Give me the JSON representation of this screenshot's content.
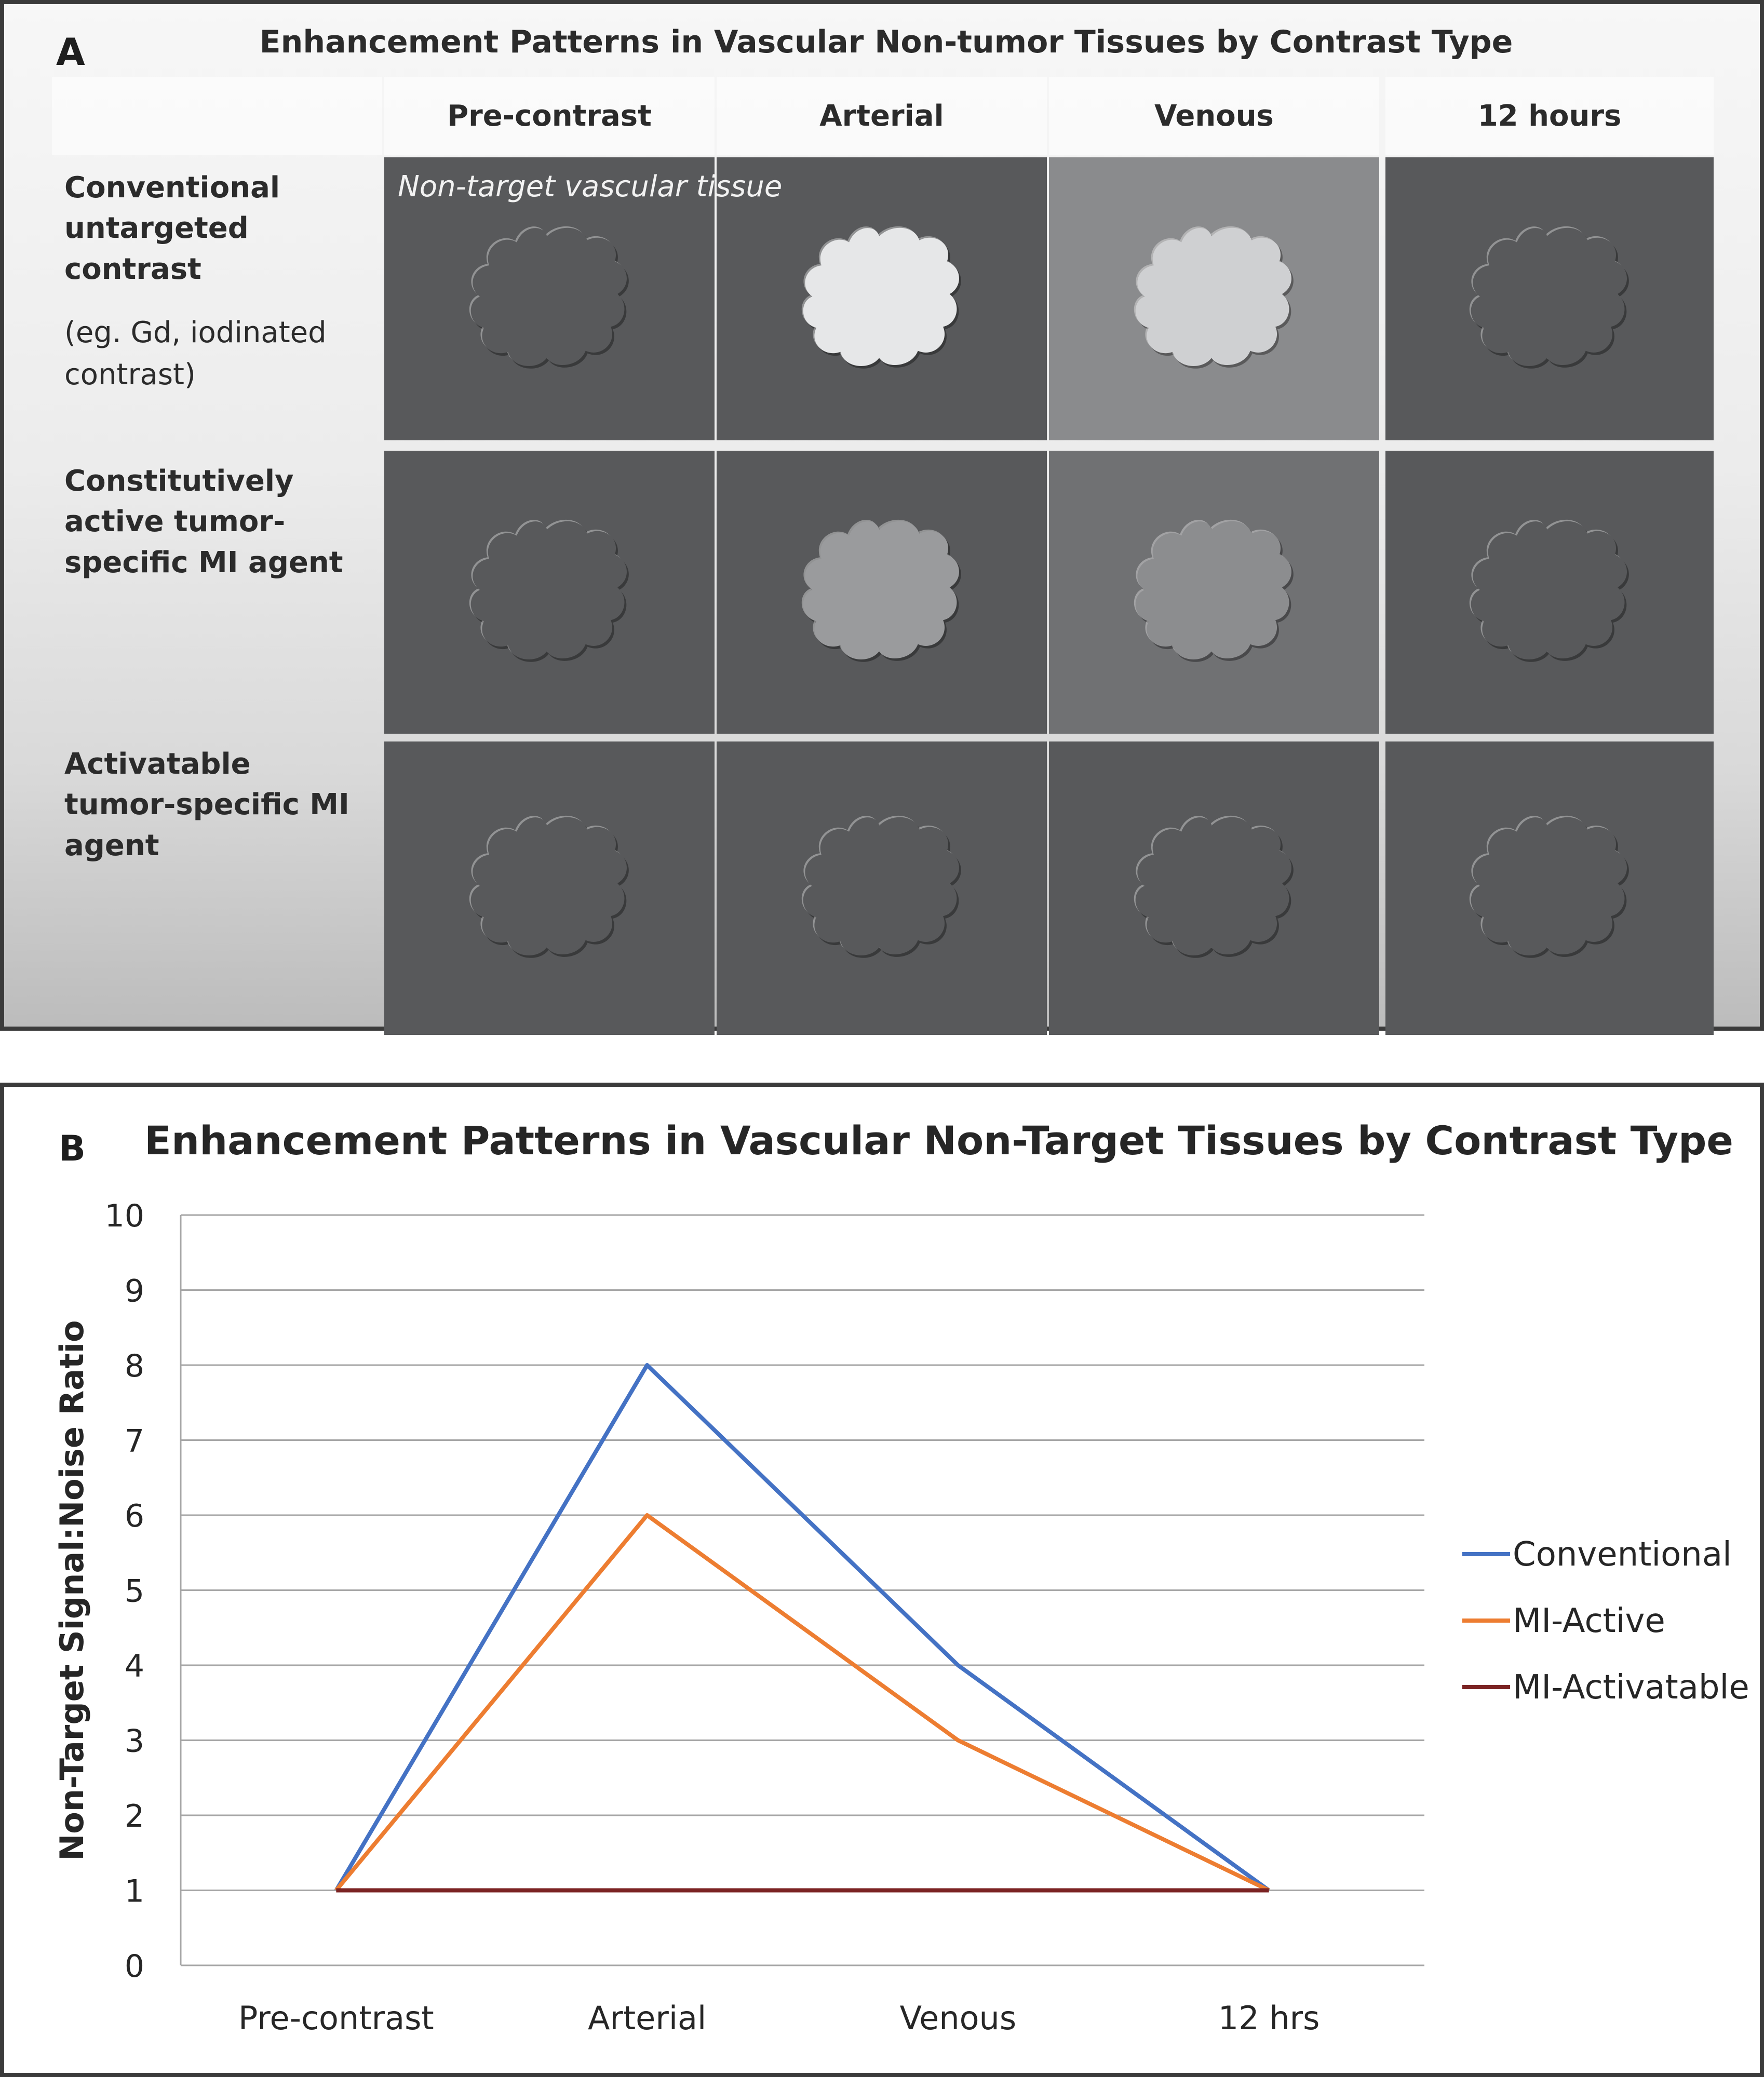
{
  "panel_a": {
    "letter": "A",
    "title": "Enhancement Patterns in Vascular Non-tumor Tissues by Contrast Type",
    "columns": [
      "Pre-contrast",
      "Arterial",
      "Venous",
      "12 hours"
    ],
    "rows": [
      {
        "label": "Conventional untargeted contrast",
        "sublabel": "(eg. Gd, iodinated contrast)",
        "cell_note": "Non-target vascular tissue",
        "background_colors": [
          "#58595b",
          "#58595b",
          "#8a8b8d",
          "#58595b"
        ],
        "blob_colors": [
          "#58595b",
          "#e6e7e8",
          "#cfd0d2",
          "#58595b"
        ]
      },
      {
        "label": "Constitutively active tumor-specific MI agent",
        "sublabel": "",
        "background_colors": [
          "#58595b",
          "#58595b",
          "#707173",
          "#58595b"
        ],
        "blob_colors": [
          "#58595b",
          "#9a9b9d",
          "#8c8d8f",
          "#58595b"
        ]
      },
      {
        "label": "Activatable tumor-specific MI agent",
        "sublabel": "",
        "background_colors": [
          "#58595b",
          "#58595b",
          "#58595b",
          "#58595b"
        ],
        "blob_colors": [
          "#58595b",
          "#58595b",
          "#58595b",
          "#58595b"
        ]
      }
    ]
  },
  "panel_b": {
    "letter": "B"
  },
  "chart_data": {
    "type": "line",
    "title": "Enhancement Patterns in Vascular Non-Target Tissues by Contrast Type",
    "xlabel": "",
    "ylabel": "Non-Target Signal:Noise Ratio",
    "categories": [
      "Pre-contrast",
      "Arterial",
      "Venous",
      "12 hrs"
    ],
    "ylim": [
      0,
      10
    ],
    "yticks": [
      0,
      1,
      2,
      3,
      4,
      5,
      6,
      7,
      8,
      9,
      10
    ],
    "grid": true,
    "legend_position": "right",
    "series": [
      {
        "name": "Conventional",
        "values": [
          1,
          8,
          4,
          1
        ],
        "color": "#4472c4"
      },
      {
        "name": "MI-Active",
        "values": [
          1,
          6,
          3,
          1
        ],
        "color": "#ed7d31"
      },
      {
        "name": "MI-Activatable",
        "values": [
          1,
          1,
          1,
          1
        ],
        "color": "#7b2323"
      }
    ]
  }
}
